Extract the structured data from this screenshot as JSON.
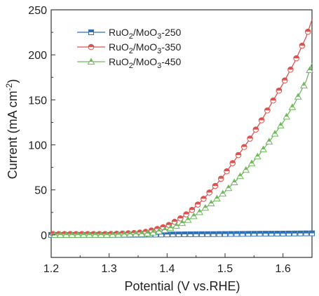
{
  "chart_data": {
    "type": "line",
    "xlabel": "Potential (V vs.RHE)",
    "ylabel": "Current (mA cm",
    "ylabel_sup": "-2",
    "ylabel_close": ")",
    "xlim": [
      1.2,
      1.65
    ],
    "ylim": [
      -25,
      250
    ],
    "xticks": [
      "1.2",
      "1.3",
      "1.4",
      "1.5",
      "1.6"
    ],
    "yticks": [
      "0",
      "50",
      "100",
      "150",
      "200",
      "250"
    ],
    "legend_position": "upper-left",
    "series": [
      {
        "name_main": "RuO",
        "name_sub1": "2",
        "name_mid": "/MoO",
        "name_sub2": "3",
        "name_tail": "-250",
        "color": "#2f6fb3",
        "marker": "square",
        "x": [
          1.2,
          1.3,
          1.35,
          1.4,
          1.45,
          1.5,
          1.55,
          1.6,
          1.65
        ],
        "y": [
          0,
          0,
          0.2,
          0.5,
          0.8,
          1.0,
          1.3,
          1.5,
          1.8
        ]
      },
      {
        "name_main": "RuO",
        "name_sub1": "2",
        "name_mid": "/MoO",
        "name_sub2": "3",
        "name_tail": "-350",
        "color": "#d9534f",
        "marker": "circle",
        "x": [
          1.2,
          1.3,
          1.34,
          1.36,
          1.38,
          1.4,
          1.42,
          1.44,
          1.46,
          1.48,
          1.5,
          1.52,
          1.54,
          1.56,
          1.58,
          1.6,
          1.62,
          1.64,
          1.65
        ],
        "y": [
          1,
          1,
          2,
          3,
          6,
          10,
          17,
          26,
          38,
          52,
          68,
          86,
          104,
          124,
          146,
          168,
          192,
          220,
          239
        ]
      },
      {
        "name_main": "RuO",
        "name_sub1": "2",
        "name_mid": "/MoO",
        "name_sub2": "3",
        "name_tail": "-450",
        "color": "#6dbb5a",
        "marker": "triangle",
        "x": [
          1.2,
          1.3,
          1.36,
          1.38,
          1.4,
          1.42,
          1.44,
          1.46,
          1.48,
          1.5,
          1.52,
          1.54,
          1.56,
          1.58,
          1.6,
          1.62,
          1.64,
          1.65
        ],
        "y": [
          0,
          0,
          1,
          3,
          6,
          11,
          18,
          27,
          37,
          48,
          61,
          75,
          90,
          107,
          125,
          146,
          171,
          191
        ]
      }
    ]
  }
}
